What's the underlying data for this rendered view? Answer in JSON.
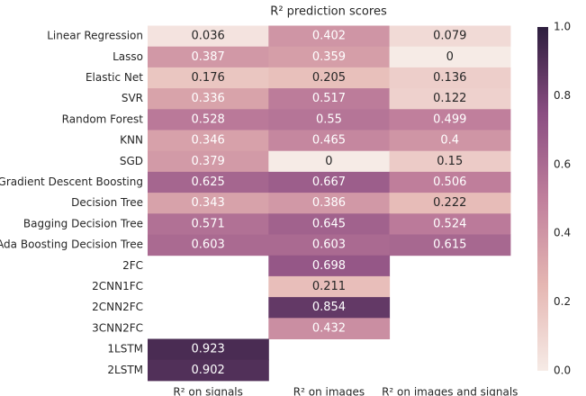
{
  "chart_data": {
    "type": "heatmap",
    "title": "R² prediction scores",
    "rows": [
      "Linear Regression",
      "Lasso",
      "Elastic Net",
      "SVR",
      "Random Forest",
      "KNN",
      "SGD",
      "Gradient Descent Boosting",
      "Decision Tree",
      "Bagging Decision Tree",
      "Ada Boosting Decision Tree",
      "2FC",
      "2CNN1FC",
      "2CNN2FC",
      "3CNN2FC",
      "1LSTM",
      "2LSTM"
    ],
    "columns": [
      "R² on signals",
      "R² on images",
      "R² on images and signals"
    ],
    "values": [
      [
        0.036,
        0.402,
        0.079
      ],
      [
        0.387,
        0.359,
        0
      ],
      [
        0.176,
        0.205,
        0.136
      ],
      [
        0.336,
        0.517,
        0.122
      ],
      [
        0.528,
        0.55,
        0.499
      ],
      [
        0.346,
        0.465,
        0.4
      ],
      [
        0.379,
        0,
        0.15
      ],
      [
        0.625,
        0.667,
        0.506
      ],
      [
        0.343,
        0.386,
        0.222
      ],
      [
        0.571,
        0.645,
        0.524
      ],
      [
        0.603,
        0.603,
        0.615
      ],
      [
        null,
        0.698,
        null
      ],
      [
        null,
        0.211,
        null
      ],
      [
        null,
        0.854,
        null
      ],
      [
        null,
        0.432,
        null
      ],
      [
        0.923,
        null,
        null
      ],
      [
        0.902,
        null,
        null
      ]
    ],
    "clim": [
      0,
      1
    ],
    "cticks": [
      {
        "value": 0,
        "label": "0.0"
      },
      {
        "value": 0.2,
        "label": "0.2"
      },
      {
        "value": 0.4,
        "label": "0.4"
      },
      {
        "value": 0.6,
        "label": "0.6"
      },
      {
        "value": 0.8,
        "label": "0.8"
      },
      {
        "value": 1,
        "label": "1.0"
      }
    ],
    "colormap": [
      "#f6ebe6",
      "#e5b6b2",
      "#c07f9c",
      "#8a4d82",
      "#2d1e3e"
    ]
  }
}
